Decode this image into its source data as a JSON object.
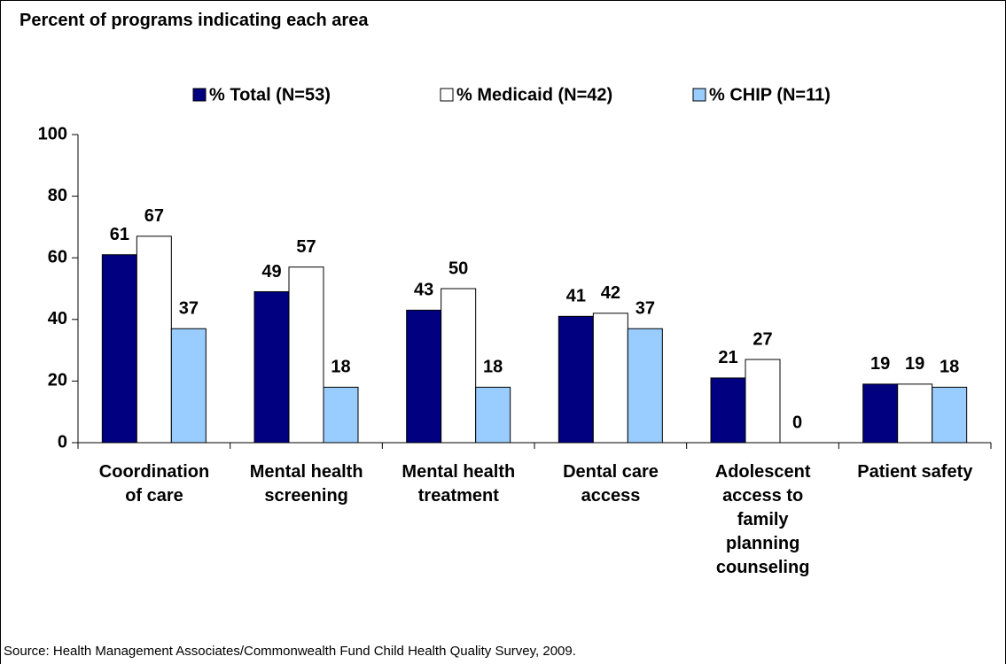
{
  "chart_data": {
    "type": "bar",
    "title": "Percent of programs indicating each area",
    "categories": [
      "Coordination\nof care",
      "Mental health\nscreening",
      "Mental health\ntreatment",
      "Dental care\naccess",
      "Adolescent\naccess to\nfamily\nplanning\ncounseling",
      "Patient safety"
    ],
    "series": [
      {
        "name": "% Total (N=53)",
        "color": "#000080",
        "values": [
          61,
          49,
          43,
          41,
          21,
          19
        ]
      },
      {
        "name": "% Medicaid (N=42)",
        "color": "#ffffff",
        "values": [
          67,
          57,
          50,
          42,
          27,
          19
        ]
      },
      {
        "name": "% CHIP (N=11)",
        "color": "#99ccff",
        "values": [
          37,
          18,
          18,
          37,
          0,
          18
        ]
      }
    ],
    "ylim": [
      0,
      100
    ],
    "yticks": [
      0,
      20,
      40,
      60,
      80,
      100
    ],
    "grid": false,
    "legend": "top",
    "source": "Source: Health Management Associates/Commonwealth Fund Child Health Quality Survey, 2009."
  }
}
